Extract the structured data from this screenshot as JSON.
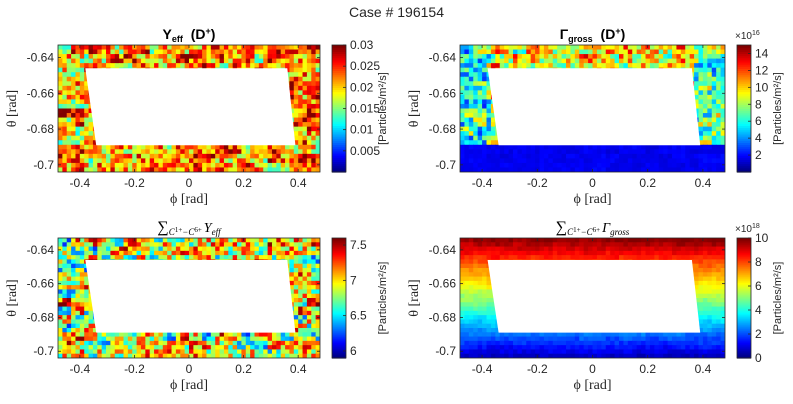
{
  "figure": {
    "title": "Case # 196154"
  },
  "chart_data": [
    {
      "type": "heatmap",
      "title": "Y_eff (D+)",
      "title_parts": {
        "main": "Y",
        "sub": "eff",
        "suffix": "(D",
        "sup": "+",
        "close": ")"
      },
      "xlabel": "ϕ  [rad]",
      "ylabel": "θ  [rad]",
      "xlim": [
        -0.48,
        0.48
      ],
      "ylim": [
        -0.704,
        -0.633
      ],
      "xticks": [
        -0.4,
        -0.2,
        0,
        0.2,
        0.4
      ],
      "xticklabels": [
        "-0.4",
        "-0.2",
        "0",
        "0.2",
        "0.4"
      ],
      "yticks": [
        -0.64,
        -0.66,
        -0.68,
        -0.7
      ],
      "yticklabels": [
        "-0.64",
        "-0.66",
        "-0.68",
        "-0.7"
      ],
      "colorbar": {
        "label": "[Particles/m²/s]",
        "clim": [
          0,
          0.03
        ],
        "ticks": [
          0.005,
          0.01,
          0.015,
          0.02,
          0.025,
          0.03
        ],
        "ticklabels": [
          "0.005",
          "0.01",
          "0.015",
          "0.02",
          "0.025",
          "0.03"
        ],
        "exponent": ""
      },
      "field": "noisy-high",
      "hole": {
        "phi": [
          -0.38,
          0.36,
          0.39,
          -0.34
        ],
        "theta": [
          -0.646,
          -0.646,
          -0.689,
          -0.689
        ]
      }
    },
    {
      "type": "heatmap",
      "title": "Γ_gross (D+)",
      "title_parts": {
        "main": "Γ",
        "sub": "gross",
        "suffix": "(D",
        "sup": "+",
        "close": ")"
      },
      "xlabel": "ϕ  [rad]",
      "ylabel": "θ  [rad]",
      "xlim": [
        -0.48,
        0.48
      ],
      "ylim": [
        -0.704,
        -0.633
      ],
      "xticks": [
        -0.4,
        -0.2,
        0,
        0.2,
        0.4
      ],
      "xticklabels": [
        "-0.4",
        "-0.2",
        "0",
        "0.2",
        "0.4"
      ],
      "yticks": [
        -0.64,
        -0.66,
        -0.68,
        -0.7
      ],
      "yticklabels": [
        "-0.64",
        "-0.66",
        "-0.68",
        "-0.7"
      ],
      "colorbar": {
        "label": "[Particles/m²/s]",
        "clim": [
          0,
          15
        ],
        "ticks": [
          2,
          4,
          6,
          8,
          10,
          12,
          14
        ],
        "ticklabels": [
          "2",
          "4",
          "6",
          "8",
          "10",
          "12",
          "14"
        ],
        "exponent": "×10",
        "exponent_power": "16"
      },
      "field": "gamma",
      "hole": {
        "phi": [
          -0.38,
          0.36,
          0.39,
          -0.34
        ],
        "theta": [
          -0.646,
          -0.646,
          -0.689,
          -0.689
        ]
      }
    },
    {
      "type": "heatmap",
      "title": "∑ C1+ − C6+ Y_eff",
      "title_parts": {
        "sigma": "∑",
        "subscript": "C",
        "s1": "1+",
        "dash": "−C",
        "s2": "6+",
        "var": "Y",
        "varsub": "eff"
      },
      "xlabel": "ϕ  [rad]",
      "ylabel": "θ  [rad]",
      "xlim": [
        -0.48,
        0.48
      ],
      "ylim": [
        -0.704,
        -0.633
      ],
      "xticks": [
        -0.4,
        -0.2,
        0,
        0.2,
        0.4
      ],
      "xticklabels": [
        "-0.4",
        "-0.2",
        "0",
        "0.2",
        "0.4"
      ],
      "yticks": [
        -0.64,
        -0.66,
        -0.68,
        -0.7
      ],
      "yticklabels": [
        "-0.64",
        "-0.66",
        "-0.68",
        "-0.7"
      ],
      "colorbar": {
        "label": "[Particles/m²/s]",
        "clim": [
          5.9,
          7.6
        ],
        "ticks": [
          6,
          6.5,
          7,
          7.5
        ],
        "ticklabels": [
          "6",
          "6.5",
          "7",
          "7.5"
        ],
        "exponent": ""
      },
      "field": "noisy-mid",
      "hole": {
        "phi": [
          -0.38,
          0.36,
          0.39,
          -0.34
        ],
        "theta": [
          -0.646,
          -0.646,
          -0.689,
          -0.689
        ]
      }
    },
    {
      "type": "heatmap",
      "title": "∑ C1+ − C6+ Γ_gross",
      "title_parts": {
        "sigma": "∑",
        "subscript": "C",
        "s1": "1+",
        "dash": "−C",
        "s2": "6+",
        "var": "Γ",
        "varsub": "gross"
      },
      "xlabel": "ϕ  [rad]",
      "ylabel": "θ  [rad]",
      "xlim": [
        -0.48,
        0.48
      ],
      "ylim": [
        -0.704,
        -0.633
      ],
      "xticks": [
        -0.4,
        -0.2,
        0,
        0.2,
        0.4
      ],
      "xticklabels": [
        "-0.4",
        "-0.2",
        "0",
        "0.2",
        "0.4"
      ],
      "yticks": [
        -0.64,
        -0.66,
        -0.68,
        -0.7
      ],
      "yticklabels": [
        "-0.64",
        "-0.66",
        "-0.68",
        "-0.7"
      ],
      "colorbar": {
        "label": "[Particles/m²/s]",
        "clim": [
          0,
          10
        ],
        "ticks": [
          0,
          2,
          4,
          6,
          8,
          10
        ],
        "ticklabels": [
          "0",
          "2",
          "4",
          "6",
          "8",
          "10"
        ],
        "exponent": "×10",
        "exponent_power": "18"
      },
      "field": "gradient",
      "hole": {
        "phi": [
          -0.38,
          0.36,
          0.39,
          -0.34
        ],
        "theta": [
          -0.646,
          -0.646,
          -0.689,
          -0.689
        ]
      }
    }
  ]
}
